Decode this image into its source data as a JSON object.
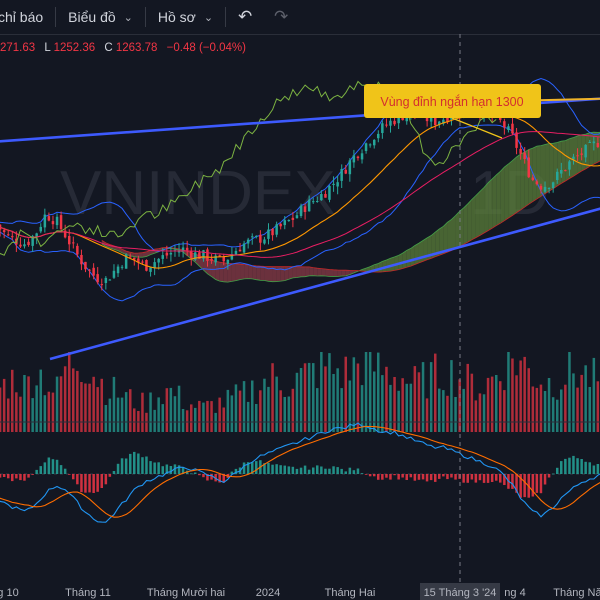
{
  "toolbar": {
    "indicators_label": "chỉ báo",
    "chart_label": "Biểu đồ",
    "profile_label": "Hồ sơ",
    "undo_icon": "undo-icon",
    "redo_icon": "redo-icon"
  },
  "ohlc": {
    "h_value": "271.63",
    "l_key": "L",
    "l_value": "1252.36",
    "c_key": "C",
    "c_value": "1263.78",
    "change": "−0.48 (−0.04%)"
  },
  "colors": {
    "background": "#131722",
    "up": "#26a69a",
    "down": "#f23645",
    "trendline": "#3d5afe",
    "resistance": "#f0b429",
    "kumo_bull": "#5b7f3a",
    "kumo_bear": "#8a3b47",
    "bollinger": "#2962ff",
    "lagging": "#7cb342",
    "macd": "#2196f3",
    "signal": "#ff6d00"
  },
  "chart_data": {
    "type": "candlestick",
    "watermark": "VNINDEX",
    "watermark_sub": "1D",
    "annotation": "Vùng đỉnh ngắn hạn 1300",
    "annotation_level": 1300,
    "x_ticks": [
      "g 10",
      "Tháng 11",
      "Tháng Mười hai",
      "2024",
      "Tháng Hai",
      "15 Tháng 3 '24",
      "ng 4",
      "Tháng Năm"
    ],
    "crosshair_date": "15 Tháng 3 '24",
    "price_range": [
      1000,
      1310
    ],
    "close_path": [
      1160,
      1148,
      1142,
      1138,
      1150,
      1172,
      1165,
      1148,
      1128,
      1112,
      1100,
      1096,
      1108,
      1122,
      1120,
      1112,
      1118,
      1124,
      1130,
      1132,
      1126,
      1124,
      1120,
      1118,
      1130,
      1138,
      1142,
      1146,
      1152,
      1160,
      1168,
      1180,
      1188,
      1196,
      1208,
      1222,
      1238,
      1250,
      1262,
      1272,
      1280,
      1286,
      1290,
      1284,
      1278,
      1282,
      1288,
      1294,
      1296,
      1290,
      1284,
      1276,
      1260,
      1236,
      1212,
      1204,
      1210,
      1222,
      1234,
      1242,
      1250,
      1258
    ],
    "volume_path": [
      40,
      48,
      55,
      44,
      62,
      52,
      38,
      66,
      74,
      70,
      58,
      45,
      40,
      36,
      30,
      28,
      34,
      42,
      38,
      30,
      26,
      24,
      28,
      30,
      34,
      38,
      44,
      50,
      54,
      48,
      52,
      56,
      60,
      66,
      62,
      58,
      64,
      70,
      66,
      60,
      58,
      54,
      48,
      52,
      56,
      60,
      58,
      52,
      48,
      44,
      54,
      64,
      74,
      68,
      58,
      52,
      48,
      56,
      62,
      58,
      54,
      50
    ],
    "macd_path": [
      -12,
      -16,
      -18,
      -20,
      -16,
      -10,
      -6,
      -8,
      -14,
      -20,
      -24,
      -26,
      -20,
      -14,
      -8,
      -4,
      -2,
      0,
      2,
      4,
      2,
      0,
      -2,
      -4,
      0,
      4,
      8,
      10,
      12,
      14,
      16,
      18,
      20,
      22,
      24,
      24,
      26,
      26,
      24,
      22,
      22,
      20,
      18,
      16,
      14,
      14,
      12,
      10,
      8,
      6,
      4,
      0,
      -6,
      -14,
      -20,
      -22,
      -18,
      -12,
      -8,
      -4,
      -2,
      0
    ]
  }
}
